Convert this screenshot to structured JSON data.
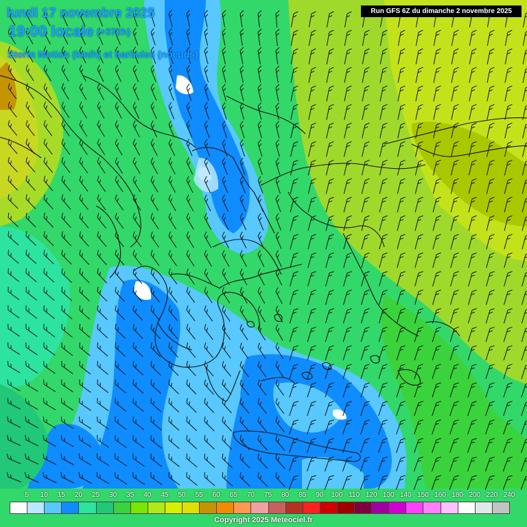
{
  "header": {
    "date": "lundi 17 novembre 2025",
    "time": "19:00 locale",
    "offset": "(+372h)",
    "subtitle": "Storm Motion (km/h) et barbules (noeuds)",
    "run": "Run GFS 6Z du dimanche 2 novembre 2025"
  },
  "legend": {
    "values": [
      "5",
      "10",
      "15",
      "20",
      "25",
      "30",
      "35",
      "40",
      "45",
      "50",
      "55",
      "60",
      "65",
      "70",
      "75",
      "80",
      "85",
      "90",
      "100",
      "110",
      "120",
      "130",
      "140",
      "150",
      "160",
      "180",
      "200",
      "220",
      "240"
    ],
    "colors": [
      "#ffffff",
      "#b9e8ff",
      "#58c8ff",
      "#0f8cff",
      "#2ce3a0",
      "#20c878",
      "#3ad33c",
      "#7be600",
      "#b0e81a",
      "#d6f000",
      "#e0e000",
      "#c69400",
      "#f08c00",
      "#ff9850",
      "#f0a0a0",
      "#c86060",
      "#b43222",
      "#ff2020",
      "#d00000",
      "#a00000",
      "#800040",
      "#a000a0",
      "#d000d0",
      "#ff40ff",
      "#ff80ff",
      "#ffc0ff",
      "#ffffff",
      "#e0e8e8",
      "#c0c4c4"
    ]
  },
  "copyright": "Copyright 2025 Meteociel.fr",
  "colors": {
    "title": "#1aa3ff",
    "coastline": "#111111",
    "barb": "#111111"
  }
}
